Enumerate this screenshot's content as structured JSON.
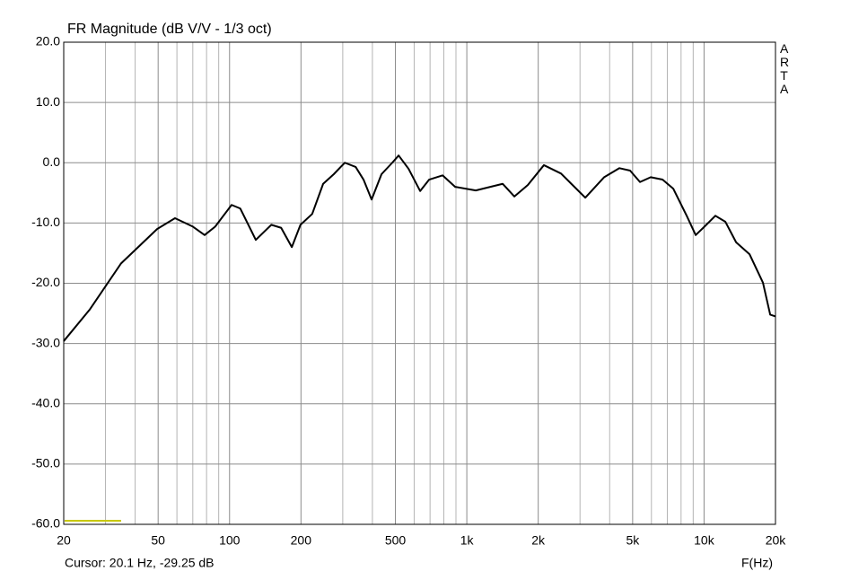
{
  "chart_data": {
    "type": "line",
    "title": "FR Magnitude (dB V/V - 1/3 oct)",
    "x_label": "F(Hz)",
    "cursor_text": "Cursor: 20.1 Hz, -29.25 dB",
    "brand": "ARTA",
    "x_scale": "log",
    "xlim": [
      20,
      20000
    ],
    "ylim": [
      -60,
      20
    ],
    "xticks": [
      20,
      50,
      100,
      200,
      500,
      {
        "value": 1000,
        "label": "1k"
      },
      {
        "value": 2000,
        "label": "2k"
      },
      {
        "value": 5000,
        "label": "5k"
      },
      {
        "value": 10000,
        "label": "10k"
      },
      {
        "value": 20000,
        "label": "20k"
      }
    ],
    "x_grid": [
      30,
      40,
      60,
      70,
      80,
      90,
      300,
      400,
      600,
      700,
      800,
      900,
      3000,
      4000,
      6000,
      7000,
      8000,
      9000
    ],
    "yticks": [
      {
        "value": 20,
        "label": "20.0"
      },
      {
        "value": 10,
        "label": "10.0"
      },
      {
        "value": 0,
        "label": "0.0"
      },
      {
        "value": -10,
        "label": "-10.0"
      },
      {
        "value": -20,
        "label": "-20.0"
      },
      {
        "value": -30,
        "label": "-30.0"
      },
      {
        "value": -40,
        "label": "-40.0"
      },
      {
        "value": -50,
        "label": "-50.0"
      },
      {
        "value": -60,
        "label": "-60.0"
      }
    ],
    "grid": true,
    "color": "#000000",
    "x": [
      20,
      25.7,
      34.9,
      49.5,
      58.9,
      70,
      78.5,
      87,
      102,
      111,
      129,
      150,
      165,
      183,
      199,
      223,
      248,
      275,
      306,
      340,
      367,
      397,
      437,
      485,
      516,
      568,
      636,
      694,
      791,
      893,
      1091,
      1416,
      1586,
      1807,
      2113,
      2496,
      3158,
      3793,
      4398,
      4878,
      5370,
      5958,
      6683,
      7414,
      8450,
      9220,
      10044,
      11160,
      12300,
      13650,
      15560,
      17710,
      19000,
      20000
    ],
    "values": [
      -29.6,
      -24.4,
      -16.7,
      -11.0,
      -9.2,
      -10.6,
      -12.0,
      -10.6,
      -7.0,
      -7.6,
      -12.8,
      -10.3,
      -10.8,
      -14.0,
      -10.3,
      -8.5,
      -3.5,
      -1.9,
      0.0,
      -0.7,
      -2.8,
      -6.1,
      -1.9,
      0.0,
      1.2,
      -1.0,
      -4.7,
      -2.8,
      -2.1,
      -4.0,
      -4.6,
      -3.5,
      -5.6,
      -3.7,
      -0.4,
      -1.8,
      -5.8,
      -2.4,
      -0.9,
      -1.3,
      -3.2,
      -2.4,
      -2.8,
      -4.3,
      -8.8,
      -12.0,
      -10.6,
      -8.8,
      -9.8,
      -13.2,
      -15.2,
      -19.9,
      -25.2,
      -25.5
    ]
  }
}
